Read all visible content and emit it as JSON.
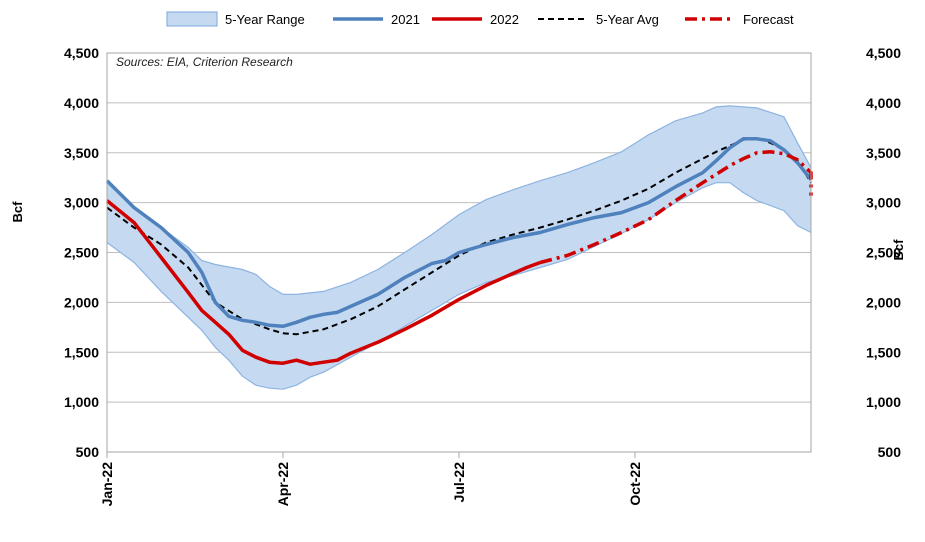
{
  "chart_data": {
    "type": "line",
    "source_note": "Sources: EIA, Criterion Research",
    "ylabel_left": "Bcf",
    "ylabel_right": "Bcf",
    "ylim": [
      500,
      4500
    ],
    "y_ticks": [
      500,
      1000,
      1500,
      2000,
      2500,
      3000,
      3500,
      4000,
      4500
    ],
    "y_tick_labels": [
      "500",
      "1,000",
      "1,500",
      "2,000",
      "2,500",
      "3,000",
      "3,500",
      "4,000",
      "4,500"
    ],
    "x_ticks": [
      {
        "week": 0,
        "label": "Jan-22"
      },
      {
        "week": 13,
        "label": "Apr-22"
      },
      {
        "week": 26,
        "label": "Jul-22"
      },
      {
        "week": 39,
        "label": "Oct-22"
      }
    ],
    "x_range_weeks": [
      0,
      52
    ],
    "grid": true,
    "legend_position": "top",
    "legend": [
      "5-Year Range",
      "2021",
      "2022",
      "5-Year Avg",
      "Forecast"
    ],
    "colors": {
      "range_fill": "#c5d9f1",
      "range_edge": "#8db4e2",
      "y2021": "#4f81bd",
      "y2022": "#d00000",
      "avg": "#000000",
      "forecast": "#d00000",
      "grid": "#bfbfbf",
      "plot_border": "#a6a6a6"
    },
    "series": {
      "range_max": [
        [
          0,
          3220
        ],
        [
          2,
          2950
        ],
        [
          4,
          2750
        ],
        [
          6,
          2550
        ],
        [
          7,
          2420
        ],
        [
          8,
          2380
        ],
        [
          10,
          2330
        ],
        [
          11,
          2280
        ],
        [
          12,
          2160
        ],
        [
          13,
          2080
        ],
        [
          14,
          2080
        ],
        [
          16,
          2110
        ],
        [
          18,
          2200
        ],
        [
          20,
          2330
        ],
        [
          22,
          2500
        ],
        [
          24,
          2680
        ],
        [
          26,
          2880
        ],
        [
          28,
          3030
        ],
        [
          30,
          3130
        ],
        [
          32,
          3220
        ],
        [
          34,
          3300
        ],
        [
          36,
          3400
        ],
        [
          38,
          3510
        ],
        [
          40,
          3680
        ],
        [
          42,
          3820
        ],
        [
          44,
          3900
        ],
        [
          45,
          3960
        ],
        [
          46,
          3970
        ],
        [
          47,
          3960
        ],
        [
          48,
          3950
        ],
        [
          50,
          3860
        ],
        [
          51,
          3600
        ],
        [
          52,
          3350
        ]
      ],
      "range_min": [
        [
          0,
          2600
        ],
        [
          2,
          2400
        ],
        [
          4,
          2110
        ],
        [
          6,
          1850
        ],
        [
          7,
          1720
        ],
        [
          8,
          1550
        ],
        [
          9,
          1420
        ],
        [
          10,
          1260
        ],
        [
          11,
          1170
        ],
        [
          12,
          1140
        ],
        [
          13,
          1130
        ],
        [
          14,
          1170
        ],
        [
          15,
          1250
        ],
        [
          16,
          1300
        ],
        [
          18,
          1450
        ],
        [
          20,
          1600
        ],
        [
          22,
          1760
        ],
        [
          24,
          1920
        ],
        [
          26,
          2080
        ],
        [
          28,
          2200
        ],
        [
          30,
          2270
        ],
        [
          32,
          2350
        ],
        [
          34,
          2430
        ],
        [
          36,
          2560
        ],
        [
          38,
          2690
        ],
        [
          40,
          2830
        ],
        [
          42,
          3000
        ],
        [
          44,
          3150
        ],
        [
          45,
          3200
        ],
        [
          46,
          3200
        ],
        [
          47,
          3100
        ],
        [
          48,
          3020
        ],
        [
          50,
          2920
        ],
        [
          51,
          2770
        ],
        [
          52,
          2700
        ]
      ],
      "y2021": [
        [
          0,
          3220
        ],
        [
          2,
          2950
        ],
        [
          4,
          2750
        ],
        [
          6,
          2500
        ],
        [
          7,
          2300
        ],
        [
          8,
          2000
        ],
        [
          9,
          1860
        ],
        [
          10,
          1820
        ],
        [
          11,
          1800
        ],
        [
          12,
          1770
        ],
        [
          13,
          1760
        ],
        [
          14,
          1800
        ],
        [
          15,
          1850
        ],
        [
          16,
          1880
        ],
        [
          17,
          1900
        ],
        [
          18,
          1960
        ],
        [
          20,
          2080
        ],
        [
          22,
          2250
        ],
        [
          24,
          2390
        ],
        [
          25,
          2420
        ],
        [
          26,
          2500
        ],
        [
          28,
          2580
        ],
        [
          30,
          2650
        ],
        [
          32,
          2700
        ],
        [
          34,
          2780
        ],
        [
          36,
          2850
        ],
        [
          38,
          2900
        ],
        [
          40,
          3000
        ],
        [
          42,
          3160
        ],
        [
          44,
          3300
        ],
        [
          45,
          3420
        ],
        [
          46,
          3550
        ],
        [
          47,
          3640
        ],
        [
          48,
          3640
        ],
        [
          49,
          3620
        ],
        [
          50,
          3530
        ],
        [
          51,
          3400
        ],
        [
          52,
          3230
        ]
      ],
      "y2022": [
        [
          0,
          3020
        ],
        [
          2,
          2800
        ],
        [
          4,
          2450
        ],
        [
          6,
          2100
        ],
        [
          7,
          1920
        ],
        [
          8,
          1800
        ],
        [
          9,
          1680
        ],
        [
          10,
          1520
        ],
        [
          11,
          1450
        ],
        [
          12,
          1400
        ],
        [
          13,
          1390
        ],
        [
          14,
          1420
        ],
        [
          15,
          1380
        ],
        [
          16,
          1400
        ],
        [
          17,
          1420
        ],
        [
          18,
          1490
        ],
        [
          20,
          1600
        ],
        [
          22,
          1730
        ],
        [
          24,
          1870
        ],
        [
          26,
          2030
        ],
        [
          28,
          2170
        ],
        [
          30,
          2290
        ],
        [
          31,
          2350
        ],
        [
          32,
          2400
        ]
      ],
      "avg_5yr": [
        [
          0,
          2950
        ],
        [
          2,
          2750
        ],
        [
          4,
          2580
        ],
        [
          6,
          2350
        ],
        [
          8,
          2000
        ],
        [
          10,
          1830
        ],
        [
          12,
          1730
        ],
        [
          13,
          1690
        ],
        [
          14,
          1680
        ],
        [
          16,
          1730
        ],
        [
          18,
          1830
        ],
        [
          20,
          1960
        ],
        [
          22,
          2130
        ],
        [
          24,
          2300
        ],
        [
          26,
          2470
        ],
        [
          28,
          2600
        ],
        [
          30,
          2680
        ],
        [
          32,
          2750
        ],
        [
          34,
          2830
        ],
        [
          36,
          2920
        ],
        [
          38,
          3020
        ],
        [
          40,
          3140
        ],
        [
          42,
          3300
        ],
        [
          44,
          3440
        ],
        [
          45,
          3510
        ],
        [
          46,
          3570
        ],
        [
          47,
          3630
        ],
        [
          48,
          3650
        ],
        [
          49,
          3600
        ],
        [
          50,
          3530
        ],
        [
          51,
          3420
        ],
        [
          52,
          3200
        ]
      ],
      "forecast": [
        [
          32,
          2400
        ],
        [
          34,
          2470
        ],
        [
          36,
          2580
        ],
        [
          38,
          2700
        ],
        [
          40,
          2830
        ],
        [
          42,
          3020
        ],
        [
          44,
          3200
        ],
        [
          46,
          3370
        ],
        [
          47,
          3440
        ],
        [
          48,
          3500
        ],
        [
          49,
          3510
        ],
        [
          50,
          3490
        ],
        [
          51,
          3430
        ],
        [
          52,
          3300
        ],
        [
          53,
          3070
        ]
      ]
    }
  }
}
